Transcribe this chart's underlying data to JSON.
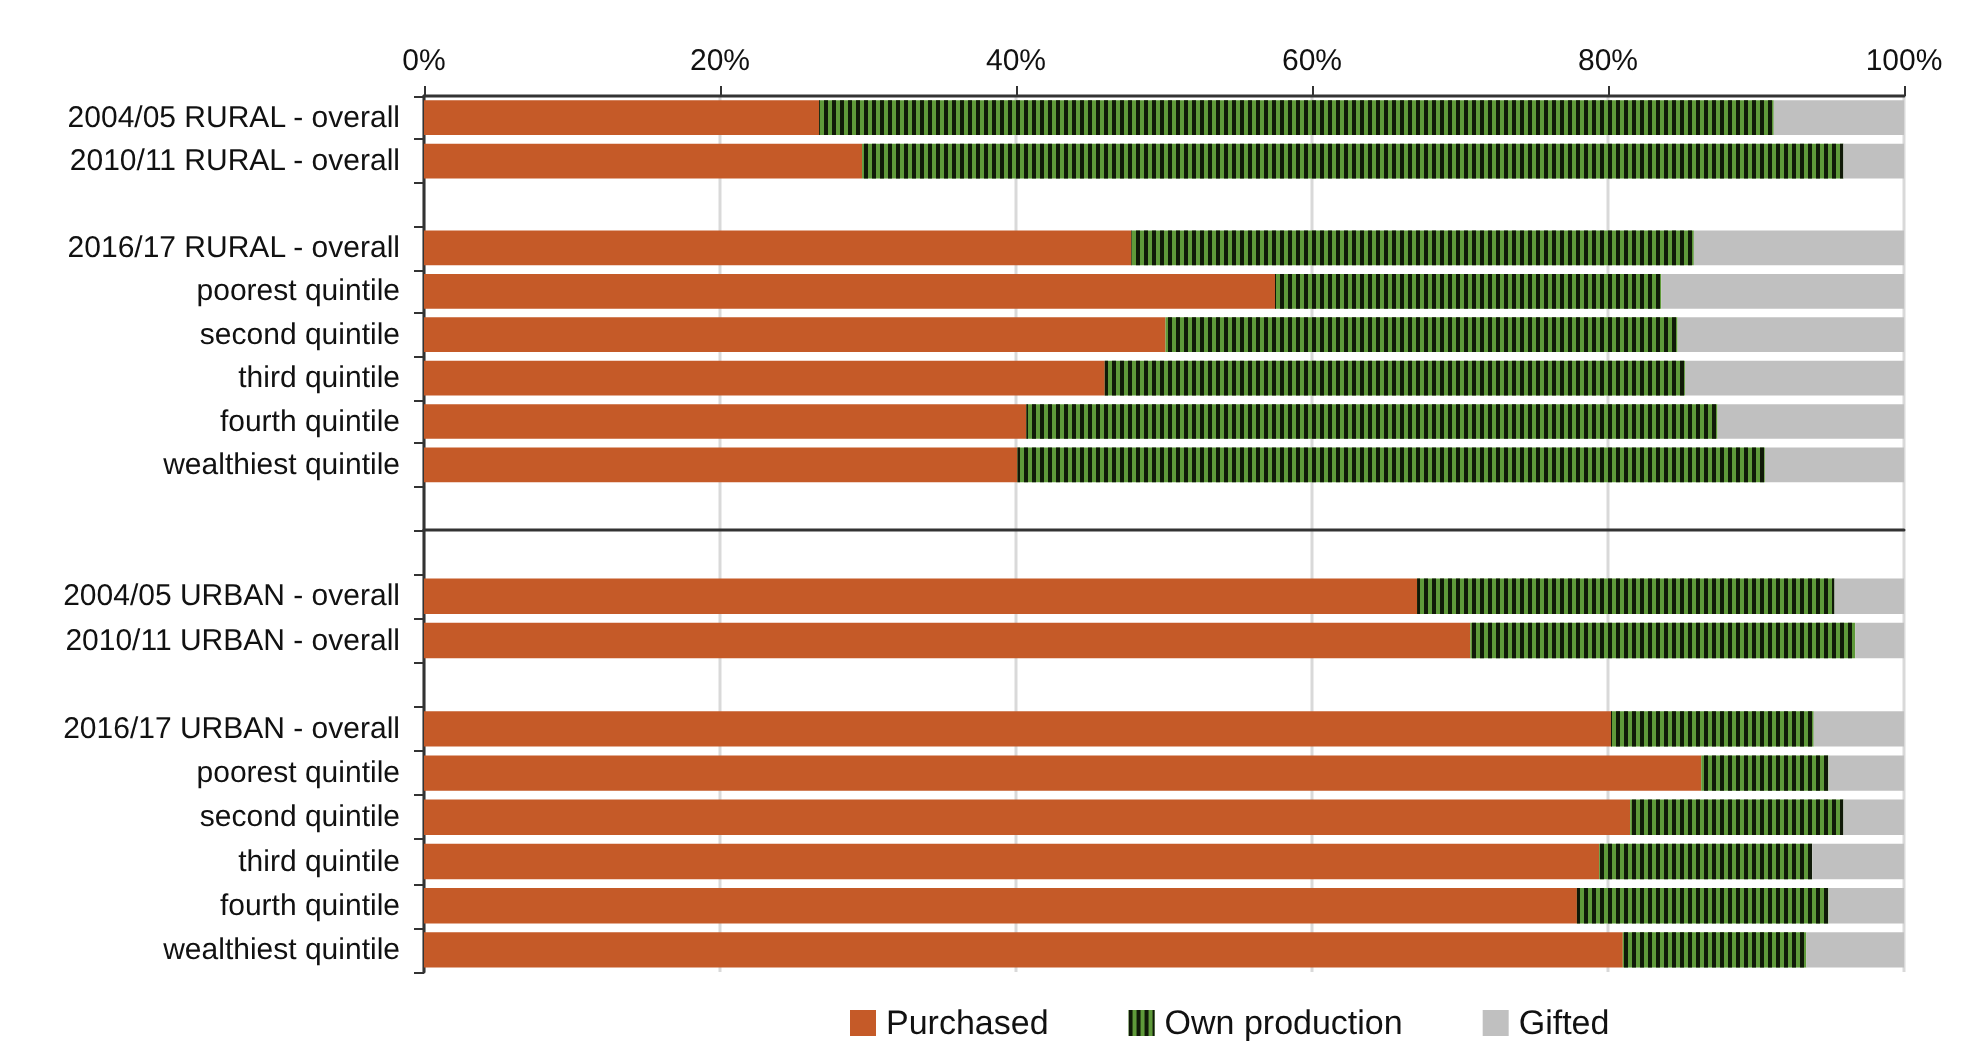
{
  "chart_data": [
    {
      "type": "bar",
      "orientation": "horizontal",
      "stacked": true,
      "categories": [
        "2004/05 RURAL - overall",
        "2010/11 RURAL - overall",
        null,
        "2016/17 RURAL - overall",
        "poorest quintile",
        "second quintile",
        "third quintile",
        "fourth quintile",
        "wealthiest quintile",
        null
      ],
      "series": [
        {
          "name": "Purchased",
          "color": "#c55a28",
          "values": [
            26.7,
            29.6,
            null,
            47.8,
            57.5,
            50.1,
            46.0,
            40.7,
            40.1,
            null
          ]
        },
        {
          "name": "Own production",
          "color": "#5f9a3a",
          "values": [
            64.5,
            66.3,
            null,
            38.0,
            26.1,
            34.6,
            39.2,
            46.7,
            50.5,
            null
          ]
        },
        {
          "name": "Gifted",
          "color": "#c0c0c0",
          "values": [
            8.8,
            4.1,
            null,
            14.2,
            16.4,
            15.3,
            14.8,
            12.6,
            9.4,
            null
          ]
        }
      ],
      "xlim": [
        0,
        100
      ],
      "xticks": [
        {
          "value": 0,
          "label": "0%"
        },
        {
          "value": 20,
          "label": "20%"
        },
        {
          "value": 40,
          "label": "40%"
        },
        {
          "value": 60,
          "label": "60%"
        },
        {
          "value": 80,
          "label": "80%"
        },
        {
          "value": 100,
          "label": "100%"
        }
      ],
      "grid": "x",
      "legend": "bottom"
    },
    {
      "type": "bar",
      "orientation": "horizontal",
      "stacked": true,
      "categories": [
        null,
        "2004/05 URBAN - overall",
        "2010/11 URBAN - overall",
        null,
        "2016/17 URBAN - overall",
        "poorest quintile",
        "second quintile",
        "third quintile",
        "fourth quintile",
        "wealthiest quintile"
      ],
      "series": [
        {
          "name": "Purchased",
          "color": "#c55a28",
          "values": [
            null,
            67.1,
            70.7,
            null,
            80.2,
            86.3,
            81.5,
            79.4,
            77.9,
            81.0
          ]
        },
        {
          "name": "Own production",
          "color": "#5f9a3a",
          "values": [
            null,
            28.2,
            26.0,
            null,
            13.7,
            8.6,
            14.4,
            14.4,
            17.0,
            12.4
          ]
        },
        {
          "name": "Gifted",
          "color": "#c0c0c0",
          "values": [
            null,
            4.7,
            3.3,
            null,
            6.1,
            5.1,
            4.1,
            6.2,
            5.1,
            6.6
          ]
        }
      ],
      "xlim": [
        0,
        100
      ],
      "xticks": [
        0,
        20,
        40,
        60,
        80,
        100
      ],
      "grid": "x",
      "legend": "bottom",
      "tick_labels": "y"
    }
  ]
}
